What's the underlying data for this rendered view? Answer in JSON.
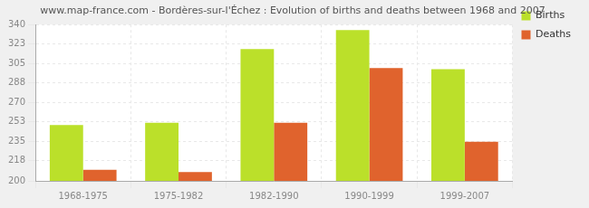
{
  "chart_data": {
    "type": "bar",
    "title": "www.map-france.com - Bordères-sur-l'Échez : Evolution of births and deaths between 1968 and 2007",
    "categories": [
      "1968-1975",
      "1975-1982",
      "1982-1990",
      "1990-1999",
      "1999-2007"
    ],
    "series": [
      {
        "name": "Births",
        "color": "#bbe02a",
        "values": [
          250,
          252,
          318,
          335,
          300
        ]
      },
      {
        "name": "Deaths",
        "color": "#e0632d",
        "values": [
          210,
          208,
          252,
          301,
          235
        ]
      }
    ],
    "ylim": [
      200,
      340
    ],
    "yticks": [
      200,
      218,
      235,
      253,
      270,
      288,
      305,
      323,
      340
    ],
    "grid": true,
    "legend": "upper right"
  }
}
